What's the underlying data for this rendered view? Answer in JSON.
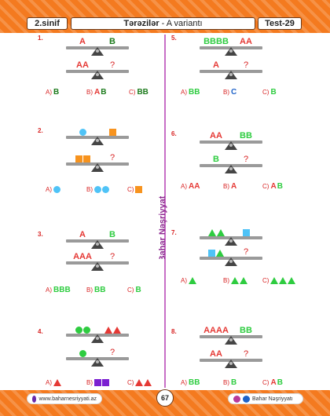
{
  "header": {
    "grade": "2.sinif",
    "title": "Tərəzilər",
    "subtitle": " - A variantı",
    "test": "Test-29"
  },
  "publisher": "Bahar Nəşriyyatı",
  "footer": {
    "website": "www.baharnesriyyati.az",
    "page": "67",
    "social": "Bahar Nəşriyyatı"
  },
  "colors": {
    "accent": "#f47a1f",
    "red": "#e53935",
    "green": "#2ecc40",
    "dark_green": "#1b7a1b",
    "blue": "#1e62c8",
    "orange": "#f7931e",
    "cyan": "#4fc3f7",
    "purple": "#7b1fd1"
  },
  "questions": [
    {
      "n": "1.",
      "opt_a": "A)",
      "opt_b": "B)",
      "opt_c": "C)",
      "s1_left": "A",
      "s1_right": "B",
      "s2_left": "AA",
      "q": "?",
      "a": "B",
      "b_a": "A",
      "b_b": "B",
      "c": "BB"
    },
    {
      "n": "2.",
      "opt_a": "A)",
      "opt_b": "B)",
      "opt_c": "C)",
      "q": "?"
    },
    {
      "n": "3.",
      "opt_a": "A)",
      "opt_b": "B)",
      "opt_c": "C)",
      "s1_left": "A",
      "s1_right": "B",
      "s2_left": "AAA",
      "q": "?",
      "a": "BBB",
      "b": "BB",
      "c": "B"
    },
    {
      "n": "4.",
      "opt_a": "A)",
      "opt_b": "B)",
      "opt_c": "C)",
      "q": "?"
    },
    {
      "n": "5.",
      "opt_a": "A)",
      "opt_b": "B)",
      "opt_c": "C)",
      "s1_left": "BBBB",
      "s1_right": "AA",
      "s2_left": "A",
      "q": "?",
      "a": "BB",
      "b": "C",
      "c": "B"
    },
    {
      "n": "6.",
      "opt_a": "A)",
      "opt_b": "B)",
      "opt_c": "C)",
      "s1_left": "AA",
      "s1_right": "BB",
      "s2_left": "B",
      "q": "?",
      "a": "AA",
      "b": "A",
      "c_a": "A",
      "c_b": "B"
    },
    {
      "n": "7.",
      "opt_a": "A)",
      "opt_b": "B)",
      "opt_c": "C)",
      "q": "?"
    },
    {
      "n": "8.",
      "opt_a": "A)",
      "opt_b": "B)",
      "opt_c": "C)",
      "s1_left": "AAAA",
      "s1_right": "BB",
      "s2_left": "AA",
      "q": "?",
      "a": "BB",
      "b": "B",
      "c_a": "A",
      "c_b": "B"
    }
  ]
}
